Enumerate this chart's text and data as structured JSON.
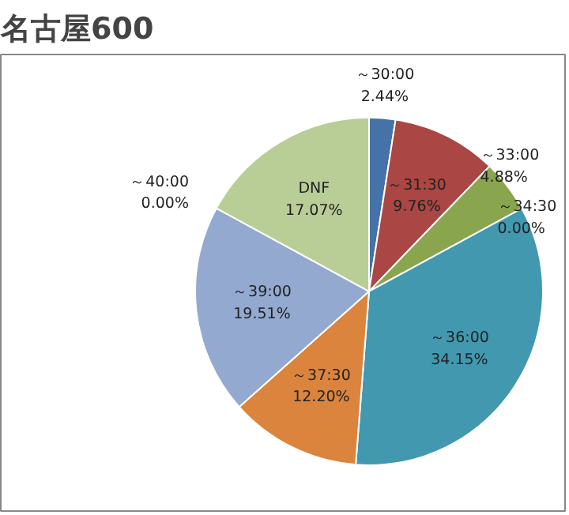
{
  "chart_data": {
    "type": "pie",
    "title": "名古屋600",
    "categories": [
      "～30:00",
      "～31:30",
      "～33:00",
      "～34:30",
      "～36:00",
      "～37:30",
      "～39:00",
      "～40:00",
      "DNF"
    ],
    "values": [
      2.44,
      9.76,
      4.88,
      0.0,
      34.15,
      12.2,
      19.51,
      0.0,
      17.07
    ],
    "value_labels": [
      "2.44%",
      "9.76%",
      "4.88%",
      "0.00%",
      "34.15%",
      "12.20%",
      "19.51%",
      "0.00%",
      "17.07%"
    ],
    "colors": [
      "#4572a7",
      "#aa4643",
      "#89a54e",
      "#71588f",
      "#4198af",
      "#db843d",
      "#93a9cf",
      "#a47d7c",
      "#b9cd96"
    ],
    "legend": false
  }
}
